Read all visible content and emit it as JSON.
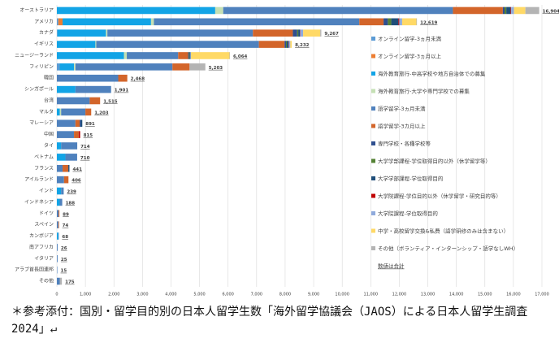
{
  "chart_data": {
    "type": "stacked-barh",
    "categories": [
      "オーストラリア",
      "アメリカ",
      "カナダ",
      "イギリス",
      "ニュージーランド",
      "フィリピン",
      "韓国",
      "シンガポール",
      "台湾",
      "マルタ",
      "マレーシア",
      "中国",
      "タイ",
      "ベトナム",
      "フランス",
      "アイルランド",
      "インド",
      "インドネシア",
      "ドイツ",
      "スペイン",
      "カンボジア",
      "南アフリカ",
      "イタリア",
      "アラブ首長国連邦",
      "その他"
    ],
    "series": [
      {
        "name": "オンライン留学-3ヵ月未満",
        "color": "#5b9bd5",
        "values": [
          0,
          50,
          20,
          0,
          0,
          100,
          0,
          0,
          0,
          0,
          0,
          0,
          0,
          0,
          0,
          0,
          0,
          0,
          0,
          0,
          0,
          0,
          0,
          0,
          0
        ]
      },
      {
        "name": "オンライン留学-3ヵ月以上",
        "color": "#ed7d31",
        "values": [
          0,
          150,
          0,
          0,
          0,
          0,
          0,
          0,
          0,
          0,
          0,
          0,
          0,
          0,
          0,
          0,
          0,
          0,
          0,
          0,
          0,
          0,
          0,
          0,
          0
        ]
      },
      {
        "name": "海外教育旅行-中高学校や地方自治体での募集",
        "color": "#12a4e6",
        "values": [
          5550,
          3100,
          1700,
          1350,
          2350,
          500,
          0,
          650,
          0,
          100,
          0,
          0,
          150,
          300,
          0,
          0,
          150,
          100,
          0,
          0,
          50,
          0,
          0,
          0,
          0
        ]
      },
      {
        "name": "海外教育旅行-大学や専門学校での募集",
        "color": "#c5e0b4",
        "values": [
          280,
          100,
          50,
          30,
          100,
          50,
          0,
          0,
          0,
          50,
          0,
          0,
          0,
          0,
          0,
          0,
          0,
          0,
          0,
          0,
          0,
          0,
          0,
          0,
          0
        ]
      },
      {
        "name": "語学留学-3ヵ月未満",
        "color": "#4f81bd",
        "values": [
          8050,
          7200,
          5100,
          5700,
          1800,
          3400,
          2150,
          1251,
          1150,
          850,
          650,
          600,
          564,
          410,
          200,
          250,
          89,
          88,
          60,
          50,
          18,
          26,
          25,
          15,
          100
        ]
      },
      {
        "name": "語学留学-3カ月以上",
        "color": "#d3652a",
        "values": [
          1750,
          850,
          1400,
          900,
          350,
          600,
          318,
          0,
          365,
          203,
          150,
          165,
          0,
          0,
          200,
          156,
          0,
          0,
          29,
          24,
          0,
          0,
          0,
          0,
          0
        ]
      },
      {
        "name": "専門学校・各種学校等",
        "color": "#2f4f8f",
        "values": [
          60,
          150,
          150,
          50,
          30,
          0,
          0,
          0,
          0,
          0,
          41,
          0,
          0,
          0,
          0,
          0,
          0,
          0,
          0,
          0,
          0,
          0,
          0,
          0,
          0
        ]
      },
      {
        "name": "大学学部課程-学位取得目的以外（休学留学等）",
        "color": "#548235",
        "values": [
          60,
          120,
          40,
          30,
          20,
          0,
          0,
          0,
          0,
          0,
          0,
          0,
          0,
          0,
          0,
          0,
          0,
          0,
          0,
          0,
          0,
          0,
          0,
          0,
          0
        ]
      },
      {
        "name": "大学学部課程-学位取得目的",
        "color": "#1f4e79",
        "values": [
          150,
          250,
          60,
          60,
          30,
          0,
          0,
          0,
          0,
          0,
          50,
          0,
          0,
          0,
          41,
          0,
          0,
          0,
          0,
          0,
          0,
          0,
          0,
          0,
          0
        ]
      },
      {
        "name": "大学院課程-学位目的以外（休学留学・研究目的等）",
        "color": "#c00000",
        "values": [
          20,
          30,
          10,
          12,
          0,
          0,
          0,
          0,
          0,
          0,
          0,
          50,
          0,
          0,
          0,
          0,
          0,
          0,
          0,
          0,
          0,
          0,
          0,
          0,
          0
        ]
      },
      {
        "name": "大学院課程-学位取得目的",
        "color": "#8faadc",
        "values": [
          100,
          100,
          100,
          50,
          20,
          0,
          0,
          0,
          0,
          0,
          0,
          0,
          0,
          0,
          0,
          0,
          0,
          0,
          0,
          0,
          0,
          0,
          0,
          0,
          0
        ]
      },
      {
        "name": "中学・高校留学交換&私費（語学研修のみは含まない）",
        "color": "#ffd966",
        "values": [
          400,
          500,
          600,
          50,
          1350,
          0,
          0,
          0,
          0,
          0,
          0,
          0,
          0,
          0,
          0,
          0,
          0,
          0,
          0,
          0,
          0,
          0,
          0,
          0,
          0
        ]
      },
      {
        "name": "その他（ボランティア・インターンシップ・語学なしWH）",
        "color": "#b4b4b4",
        "values": [
          484,
          19,
          37,
          0,
          14,
          553,
          0,
          0,
          0,
          0,
          0,
          0,
          0,
          0,
          0,
          0,
          0,
          0,
          0,
          0,
          0,
          0,
          0,
          0,
          75
        ]
      }
    ],
    "totals": {
      "name": "数値は合計",
      "values": [
        16904,
        12619,
        9267,
        8232,
        6064,
        5203,
        2468,
        1901,
        1515,
        1203,
        891,
        815,
        714,
        710,
        441,
        406,
        239,
        188,
        89,
        74,
        68,
        26,
        25,
        15,
        175
      ],
      "value_labels": [
        "16,904",
        "12,619",
        "9,267",
        "8,232",
        "6,064",
        "5,203",
        "2,468",
        "1,901",
        "1,515",
        "1,203",
        "891",
        "815",
        "714",
        "710",
        "441",
        "406",
        "239",
        "188",
        "89",
        "74",
        "68",
        "26",
        "25",
        "15",
        "175"
      ]
    },
    "xlim": [
      0,
      17000
    ],
    "xticks": [
      0,
      {
        "value": 1000,
        "label": "1,000"
      },
      {
        "value": 2000,
        "label": "2,000"
      },
      {
        "value": 3000,
        "label": "3,000"
      },
      {
        "value": 4000,
        "label": "4,000"
      },
      {
        "value": 5000,
        "label": "5,000"
      },
      {
        "value": 6000,
        "label": "6,000"
      },
      {
        "value": 7000,
        "label": "7,000"
      },
      {
        "value": 8000,
        "label": "8,000"
      },
      {
        "value": 9000,
        "label": "9,000"
      },
      {
        "value": 10000,
        "label": "10,000"
      },
      {
        "value": 11000,
        "label": "11,000"
      },
      {
        "value": 12000,
        "label": "12,000"
      },
      {
        "value": 13000,
        "label": "13,000"
      },
      {
        "value": 14000,
        "label": "14,000"
      },
      {
        "value": 15000,
        "label": "15,000"
      },
      {
        "value": 16000,
        "label": "16,000"
      },
      {
        "value": 17000,
        "label": "17,000"
      }
    ],
    "grid": true
  },
  "caption": "＊参考添付：国別・留学目的別の日本人留学生数「海外留学協議会（JAOS）による日本人留学生調査2024」↵"
}
